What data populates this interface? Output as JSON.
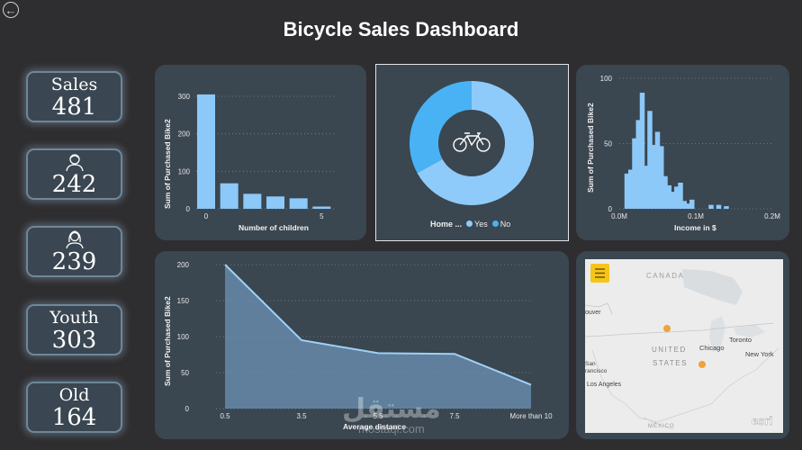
{
  "header": {
    "title": "Bicycle Sales Dashboard",
    "back_icon": "arrow-left-icon"
  },
  "kpis": [
    {
      "label": "Sales",
      "value": "481",
      "icon": ""
    },
    {
      "label": "",
      "value": "242",
      "icon": "male-person-icon"
    },
    {
      "label": "",
      "value": "239",
      "icon": "female-person-icon"
    },
    {
      "label": "Youth",
      "value": "303",
      "icon": ""
    },
    {
      "label": "Old",
      "value": "164",
      "icon": ""
    }
  ],
  "chart_data": [
    {
      "type": "bar",
      "title": "",
      "xlabel": "Number of children",
      "ylabel": "Sum of Purchased Bike2",
      "categories": [
        "0",
        "1",
        "2",
        "3",
        "4",
        "5"
      ],
      "xticks": [
        "0",
        "5"
      ],
      "values": [
        305,
        68,
        40,
        33,
        28,
        6
      ],
      "ylim": [
        0,
        300
      ],
      "yticks": [
        "0",
        "100",
        "200",
        "300"
      ],
      "color": "#8cc8f8"
    },
    {
      "type": "pie",
      "variant": "donut",
      "legend_title": "Home ...",
      "labels": [
        "Yes",
        "No"
      ],
      "values": [
        67,
        33
      ],
      "colors": [
        "#8fcbfa",
        "#49b2f4"
      ],
      "center_icon": "bicycle-icon"
    },
    {
      "type": "bar",
      "xlabel": "Income in $",
      "ylabel": "Sum of Purchased Bike2",
      "xticks": [
        "0.0M",
        "0.1M",
        "0.2M"
      ],
      "xlim": [
        0,
        0.2
      ],
      "x": [
        0.01,
        0.015,
        0.02,
        0.025,
        0.03,
        0.035,
        0.04,
        0.045,
        0.05,
        0.055,
        0.06,
        0.065,
        0.07,
        0.075,
        0.08,
        0.085,
        0.09,
        0.095,
        0.1,
        0.11,
        0.12,
        0.13,
        0.14,
        0.15,
        0.16,
        0.17
      ],
      "values": [
        27,
        30,
        54,
        68,
        89,
        33,
        75,
        49,
        59,
        48,
        25,
        18,
        13,
        17,
        20,
        6,
        4,
        7,
        0,
        0,
        3,
        3,
        2,
        0,
        0,
        0
      ],
      "ylim": [
        0,
        100
      ],
      "yticks": [
        "0",
        "50",
        "100"
      ],
      "color": "#8cc8f8"
    },
    {
      "type": "area",
      "xlabel": "Average distance",
      "ylabel": "Sum of Purchased Bike2",
      "categories": [
        "0.5",
        "3.5",
        "5.5",
        "7.5",
        "More than 10"
      ],
      "xtick_labels": [
        "0.5",
        "3.5",
        "5.5",
        "7.5",
        "More than 10"
      ],
      "values": [
        200,
        95,
        77,
        76,
        33
      ],
      "ylim": [
        0,
        200
      ],
      "yticks": [
        "0",
        "50",
        "100",
        "150",
        "200"
      ],
      "color": "#6c93b6"
    }
  ],
  "map": {
    "menu_icon": "hamburger-menu-icon",
    "labels": {
      "canada": "CANADA",
      "united": "UNITED",
      "states": "STATES",
      "chicago": "Chicago",
      "toronto": "Toronto",
      "new_york": "New York",
      "vancouver": "ouver",
      "sf": "San\nFrancisco",
      "la": "Los Angeles",
      "mexico": "MÉXICO"
    },
    "label_sf1": "San",
    "label_sf2": "rancisco",
    "logo": "esri",
    "point_color": "#f0a23c"
  },
  "watermark": {
    "arabic": "مستقل",
    "latin": "mostaql.com"
  }
}
